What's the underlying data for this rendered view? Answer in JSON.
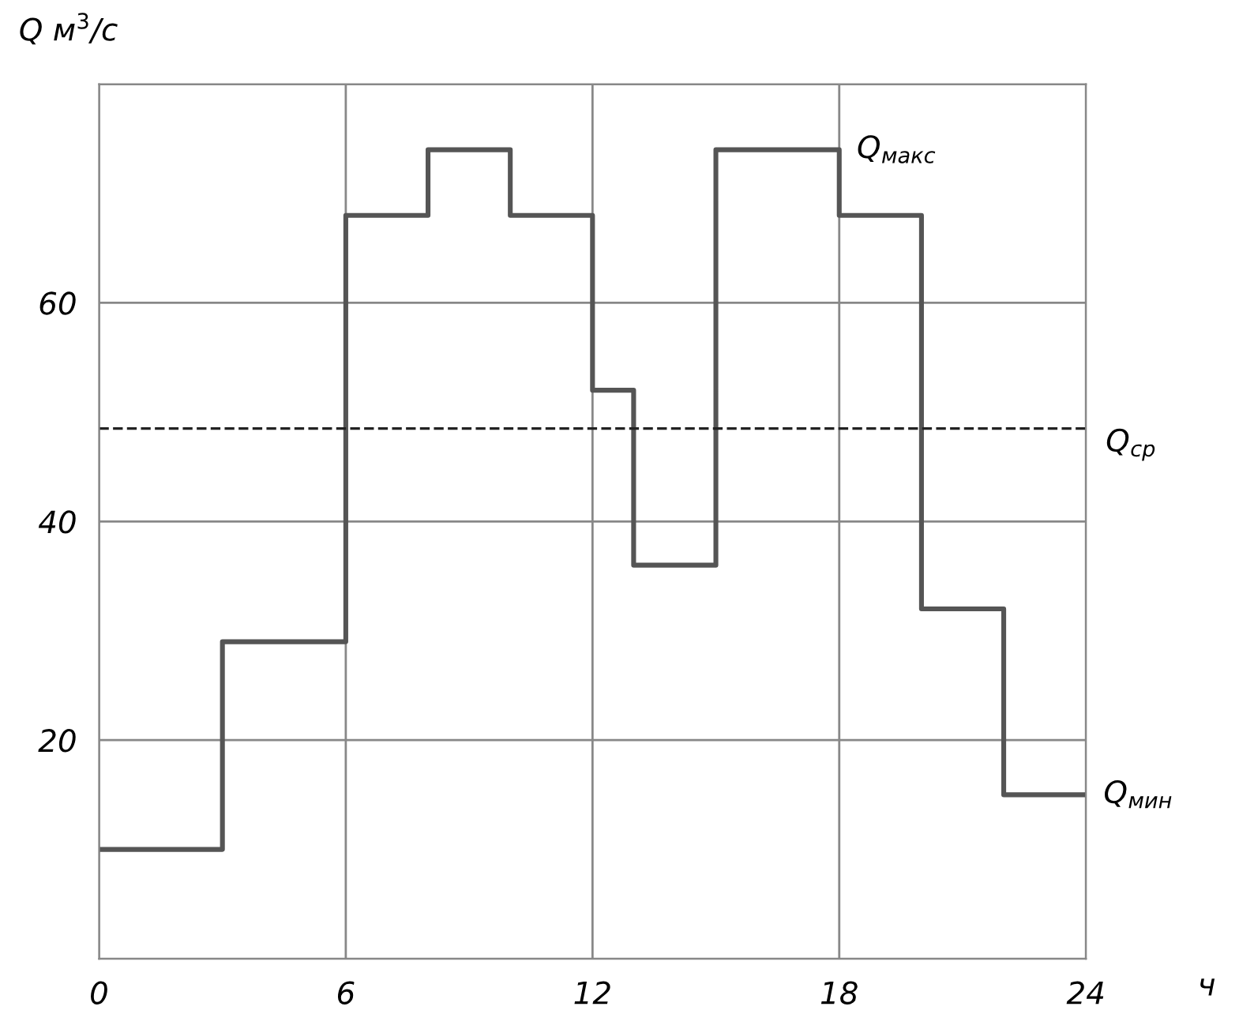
{
  "chart_data": {
    "type": "step",
    "x": [
      0,
      3,
      6,
      8,
      10,
      12,
      13,
      15,
      18,
      20,
      22,
      24
    ],
    "values": [
      10,
      29,
      68,
      74,
      68,
      52,
      36,
      74,
      68,
      32,
      15,
      15
    ],
    "color": "#555555",
    "xlim": [
      0,
      24
    ],
    "xticks": [
      0,
      6,
      12,
      18,
      24
    ],
    "ylim": [
      0,
      80
    ],
    "yticks": [
      {
        "value": 0,
        "label": null
      },
      20,
      40,
      60,
      {
        "value": 80,
        "label": null
      }
    ],
    "xlabel": "ч",
    "ylabel": "Q м$^{3}$/с",
    "grid": true,
    "line_style": "solid",
    "marker": "none",
    "ref_lines": [
      {
        "axis": "y",
        "value": 48.5,
        "label": "Q$_{ср}$",
        "line_style": "dashed",
        "color": "#222222"
      }
    ],
    "annotations": [
      {
        "text": "Q$_{макс}$",
        "x": 18,
        "y": 74
      },
      {
        "text": "Q$_{мин}$",
        "x": 24,
        "y": 15
      }
    ]
  }
}
